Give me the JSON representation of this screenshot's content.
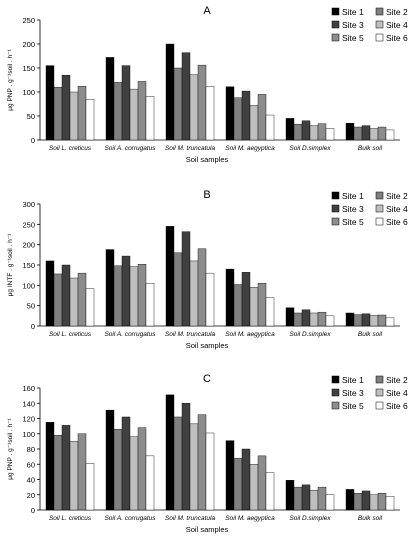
{
  "colors": {
    "series": [
      "#000000",
      "#808080",
      "#404040",
      "#bfbfbf",
      "#8c8c8c",
      "#ffffff"
    ],
    "axis": "#000000",
    "bar_outline": "#000000"
  },
  "chart_data": [
    {
      "type": "bar",
      "title": "A",
      "ylabel": "μg PNP . g⁻¹soil . h⁻¹",
      "xlabel": "Soil samples",
      "categories": [
        "Soil L. creticus",
        "Soil A. corrugatus",
        "Soil M. truncatula",
        "Soil M. aegyptica",
        "Soil D.simplex",
        "Bulk soil"
      ],
      "ylim": [
        0,
        250
      ],
      "yticks": [
        0,
        50,
        100,
        150,
        200,
        250
      ],
      "grid": false,
      "legend_position": "top-right",
      "series": [
        {
          "name": "Site 1",
          "values": [
            155,
            172,
            200,
            111,
            45,
            35
          ]
        },
        {
          "name": "Site 2",
          "values": [
            110,
            120,
            150,
            88,
            33,
            27
          ]
        },
        {
          "name": "Site 3",
          "values": [
            135,
            155,
            182,
            102,
            40,
            30
          ]
        },
        {
          "name": "Site 4",
          "values": [
            100,
            106,
            136,
            72,
            30,
            24
          ]
        },
        {
          "name": "Site 5",
          "values": [
            112,
            122,
            156,
            95,
            34,
            27
          ]
        },
        {
          "name": "Site 6",
          "values": [
            85,
            91,
            112,
            52,
            24,
            21
          ]
        }
      ]
    },
    {
      "type": "bar",
      "title": "B",
      "ylabel": "μg INTF . g⁻¹soil . h⁻¹",
      "xlabel": "Soil samples",
      "categories": [
        "Soil L. creticus",
        "Soil A. corrugatus",
        "Soil M. truncatula",
        "Soil M. aegyptica",
        "Soil D.simplex",
        "Bulk soil"
      ],
      "ylim": [
        0,
        300
      ],
      "yticks": [
        0,
        50,
        100,
        150,
        200,
        250,
        300
      ],
      "grid": false,
      "legend_position": "top-right",
      "series": [
        {
          "name": "Site 1",
          "values": [
            160,
            188,
            245,
            140,
            45,
            32
          ]
        },
        {
          "name": "Site 2",
          "values": [
            128,
            148,
            180,
            102,
            32,
            28
          ]
        },
        {
          "name": "Site 3",
          "values": [
            150,
            172,
            232,
            132,
            40,
            30
          ]
        },
        {
          "name": "Site 4",
          "values": [
            118,
            146,
            160,
            95,
            32,
            26
          ]
        },
        {
          "name": "Site 5",
          "values": [
            130,
            152,
            190,
            105,
            34,
            27
          ]
        },
        {
          "name": "Site 6",
          "values": [
            92,
            105,
            130,
            70,
            25,
            20
          ]
        }
      ]
    },
    {
      "type": "bar",
      "title": "C",
      "ylabel": "μg PNP . g⁻¹soil . h⁻¹",
      "xlabel": "Soil samples",
      "categories": [
        "Soil L. creticus",
        "Soil A. corrugatus",
        "Soil M. truncatula",
        "Soil M. aegyptica",
        "Soil D.simplex",
        "Bulk soil"
      ],
      "ylim": [
        0,
        160
      ],
      "yticks": [
        0,
        20,
        40,
        60,
        80,
        100,
        120,
        140,
        160
      ],
      "grid": false,
      "legend_position": "top-right",
      "series": [
        {
          "name": "Site 1",
          "values": [
            115,
            131,
            151,
            91,
            39,
            27
          ]
        },
        {
          "name": "Site 2",
          "values": [
            98,
            106,
            122,
            68,
            30,
            22
          ]
        },
        {
          "name": "Site 3",
          "values": [
            111,
            122,
            140,
            80,
            33,
            25
          ]
        },
        {
          "name": "Site 4",
          "values": [
            90,
            96,
            113,
            60,
            26,
            20
          ]
        },
        {
          "name": "Site 5",
          "values": [
            100,
            108,
            125,
            71,
            30,
            22
          ]
        },
        {
          "name": "Site 6",
          "values": [
            61,
            71,
            101,
            49,
            20,
            18
          ]
        }
      ]
    }
  ]
}
